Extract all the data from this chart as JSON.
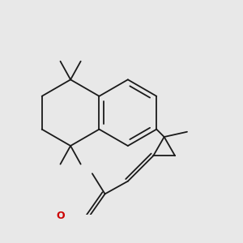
{
  "bg_color": "#e8e8e8",
  "bond_color": "#1a1a1a",
  "o_color": "#cc0000",
  "oh_color": "#2a8080",
  "lw": 1.3,
  "fig_w": 3.0,
  "fig_h": 3.0,
  "dpi": 100
}
